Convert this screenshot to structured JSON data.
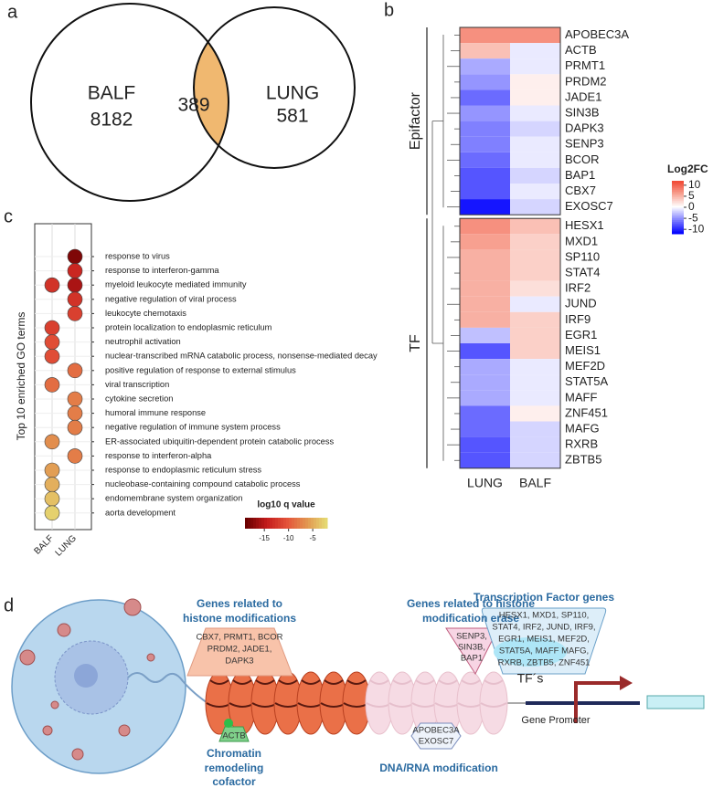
{
  "panel_labels": [
    "a",
    "b",
    "c",
    "d"
  ],
  "venn": {
    "sets": [
      {
        "label": "BALF",
        "count": 8182
      },
      {
        "label": "LUNG",
        "count": 581
      }
    ],
    "intersection": 389
  },
  "heatmap": {
    "columns": [
      "LUNG",
      "BALF"
    ],
    "groups": [
      {
        "label": "Epifactor",
        "rows": [
          {
            "gene": "APOBEC3A",
            "values": [
              7,
              7
            ]
          },
          {
            "gene": "ACTB",
            "values": [
              4,
              -1
            ]
          },
          {
            "gene": "PRMT1",
            "values": [
              -4,
              -1
            ]
          },
          {
            "gene": "PRDM2",
            "values": [
              -5,
              1
            ]
          },
          {
            "gene": "JADE1",
            "values": [
              -7,
              1
            ]
          },
          {
            "gene": "SIN3B",
            "values": [
              -5,
              -1
            ]
          },
          {
            "gene": "DAPK3",
            "values": [
              -6,
              -2
            ]
          },
          {
            "gene": "SENP3",
            "values": [
              -6,
              -1
            ]
          },
          {
            "gene": "BCOR",
            "values": [
              -7,
              -1
            ]
          },
          {
            "gene": "BAP1",
            "values": [
              -8,
              -2
            ]
          },
          {
            "gene": "CBX7",
            "values": [
              -8,
              -1
            ]
          },
          {
            "gene": "EXOSC7",
            "values": [
              -11,
              -2
            ]
          }
        ]
      },
      {
        "label": "TF",
        "rows": [
          {
            "gene": "HESX1",
            "values": [
              7,
              4
            ]
          },
          {
            "gene": "MXD1",
            "values": [
              6,
              3
            ]
          },
          {
            "gene": "SP110",
            "values": [
              5,
              3
            ]
          },
          {
            "gene": "STAT4",
            "values": [
              5,
              3
            ]
          },
          {
            "gene": "IRF2",
            "values": [
              5,
              2
            ]
          },
          {
            "gene": "JUND",
            "values": [
              5,
              -1
            ]
          },
          {
            "gene": "IRF9",
            "values": [
              5,
              3
            ]
          },
          {
            "gene": "EGR1",
            "values": [
              -3,
              3
            ]
          },
          {
            "gene": "MEIS1",
            "values": [
              -8,
              3
            ]
          },
          {
            "gene": "MEF2D",
            "values": [
              -4,
              -1
            ]
          },
          {
            "gene": "STAT5A",
            "values": [
              -4,
              -1
            ]
          },
          {
            "gene": "MAFF",
            "values": [
              -4,
              -1
            ]
          },
          {
            "gene": "ZNF451",
            "values": [
              -7,
              1
            ]
          },
          {
            "gene": "MAFG",
            "values": [
              -7,
              -2
            ]
          },
          {
            "gene": "RXRB",
            "values": [
              -8,
              -2
            ]
          },
          {
            "gene": "ZBTB5",
            "values": [
              -8,
              -2
            ]
          }
        ]
      }
    ],
    "legend": {
      "title": "Log2FC",
      "lim": [
        -12,
        12
      ],
      "ticks": [
        10,
        5,
        0,
        -5,
        -10
      ]
    }
  },
  "dotplot": {
    "ylabel": "Top 10 enriched GO terms",
    "columns": [
      "BALF",
      "LUNG"
    ],
    "terms": [
      {
        "term": "response to virus",
        "values": [
          null,
          -18
        ]
      },
      {
        "term": "response to interferon-gamma",
        "values": [
          null,
          -14
        ]
      },
      {
        "term": "myeloid leukocyte mediated immunity",
        "values": [
          -13,
          -16
        ]
      },
      {
        "term": "negative regulation of viral process",
        "values": [
          null,
          -13
        ]
      },
      {
        "term": "leukocyte chemotaxis",
        "values": [
          null,
          -12
        ]
      },
      {
        "term": "protein localization to endoplasmic reticulum",
        "values": [
          -12,
          null
        ]
      },
      {
        "term": "neutrophil activation",
        "values": [
          -11,
          null
        ]
      },
      {
        "term": "nuclear-transcribed mRNA catabolic process, nonsense-mediated decay",
        "values": [
          -11,
          null
        ]
      },
      {
        "term": "positive regulation of response to external stimulus",
        "values": [
          null,
          -9
        ]
      },
      {
        "term": "viral transcription",
        "values": [
          -9,
          null
        ]
      },
      {
        "term": "cytokine secretion",
        "values": [
          null,
          -8
        ]
      },
      {
        "term": "humoral immune response",
        "values": [
          null,
          -8
        ]
      },
      {
        "term": "negative regulation of immune system process",
        "values": [
          null,
          -8
        ]
      },
      {
        "term": "ER-associated ubiquitin-dependent protein catabolic process",
        "values": [
          -7,
          null
        ]
      },
      {
        "term": "response to interferon-alpha",
        "values": [
          null,
          -8
        ]
      },
      {
        "term": "response to endoplasmic reticulum stress",
        "values": [
          -6,
          null
        ]
      },
      {
        "term": "nucleobase-containing compound catabolic process",
        "values": [
          -5,
          null
        ]
      },
      {
        "term": "endomembrane system organization",
        "values": [
          -4,
          null
        ]
      },
      {
        "term": "aorta development",
        "values": [
          -3,
          null
        ]
      }
    ],
    "legend": {
      "title": "log10 q value",
      "lim": [
        -19,
        -2
      ],
      "ticks": [
        -15,
        -10,
        -5
      ]
    }
  },
  "diagram": {
    "histone_mod": {
      "title": [
        "Genes related to",
        "histone modifications"
      ],
      "genes": [
        "CBX7, PRMT1, BCOR",
        "PRDM2, JADE1,",
        "DAPK3"
      ]
    },
    "histone_erase": {
      "title": [
        "Genes related to histone",
        "modification erase"
      ],
      "genes": [
        "SENP3,",
        "SIN3B,",
        "BAP1"
      ]
    },
    "tf": {
      "title": "Transcription Factor genes",
      "genes": [
        "HESX1, MXD1, SP110,",
        "STAT4, IRF2, JUND, IRF9,",
        "EGR1, MEIS1, MEF2D,",
        "STAT5A, MAFF MAFG,",
        "RXRB, ZBTB5, ZNF451"
      ]
    },
    "remodeling": {
      "gene": "ACTB",
      "title": [
        "Chromatin",
        "remodeling",
        "cofactor"
      ]
    },
    "dna_rna": {
      "genes": [
        "APOBEC3A",
        "EXOSC7"
      ],
      "title": "DNA/RNA modification"
    },
    "tfs_label": "TF´s",
    "promoter_label": "Gene Promoter"
  }
}
